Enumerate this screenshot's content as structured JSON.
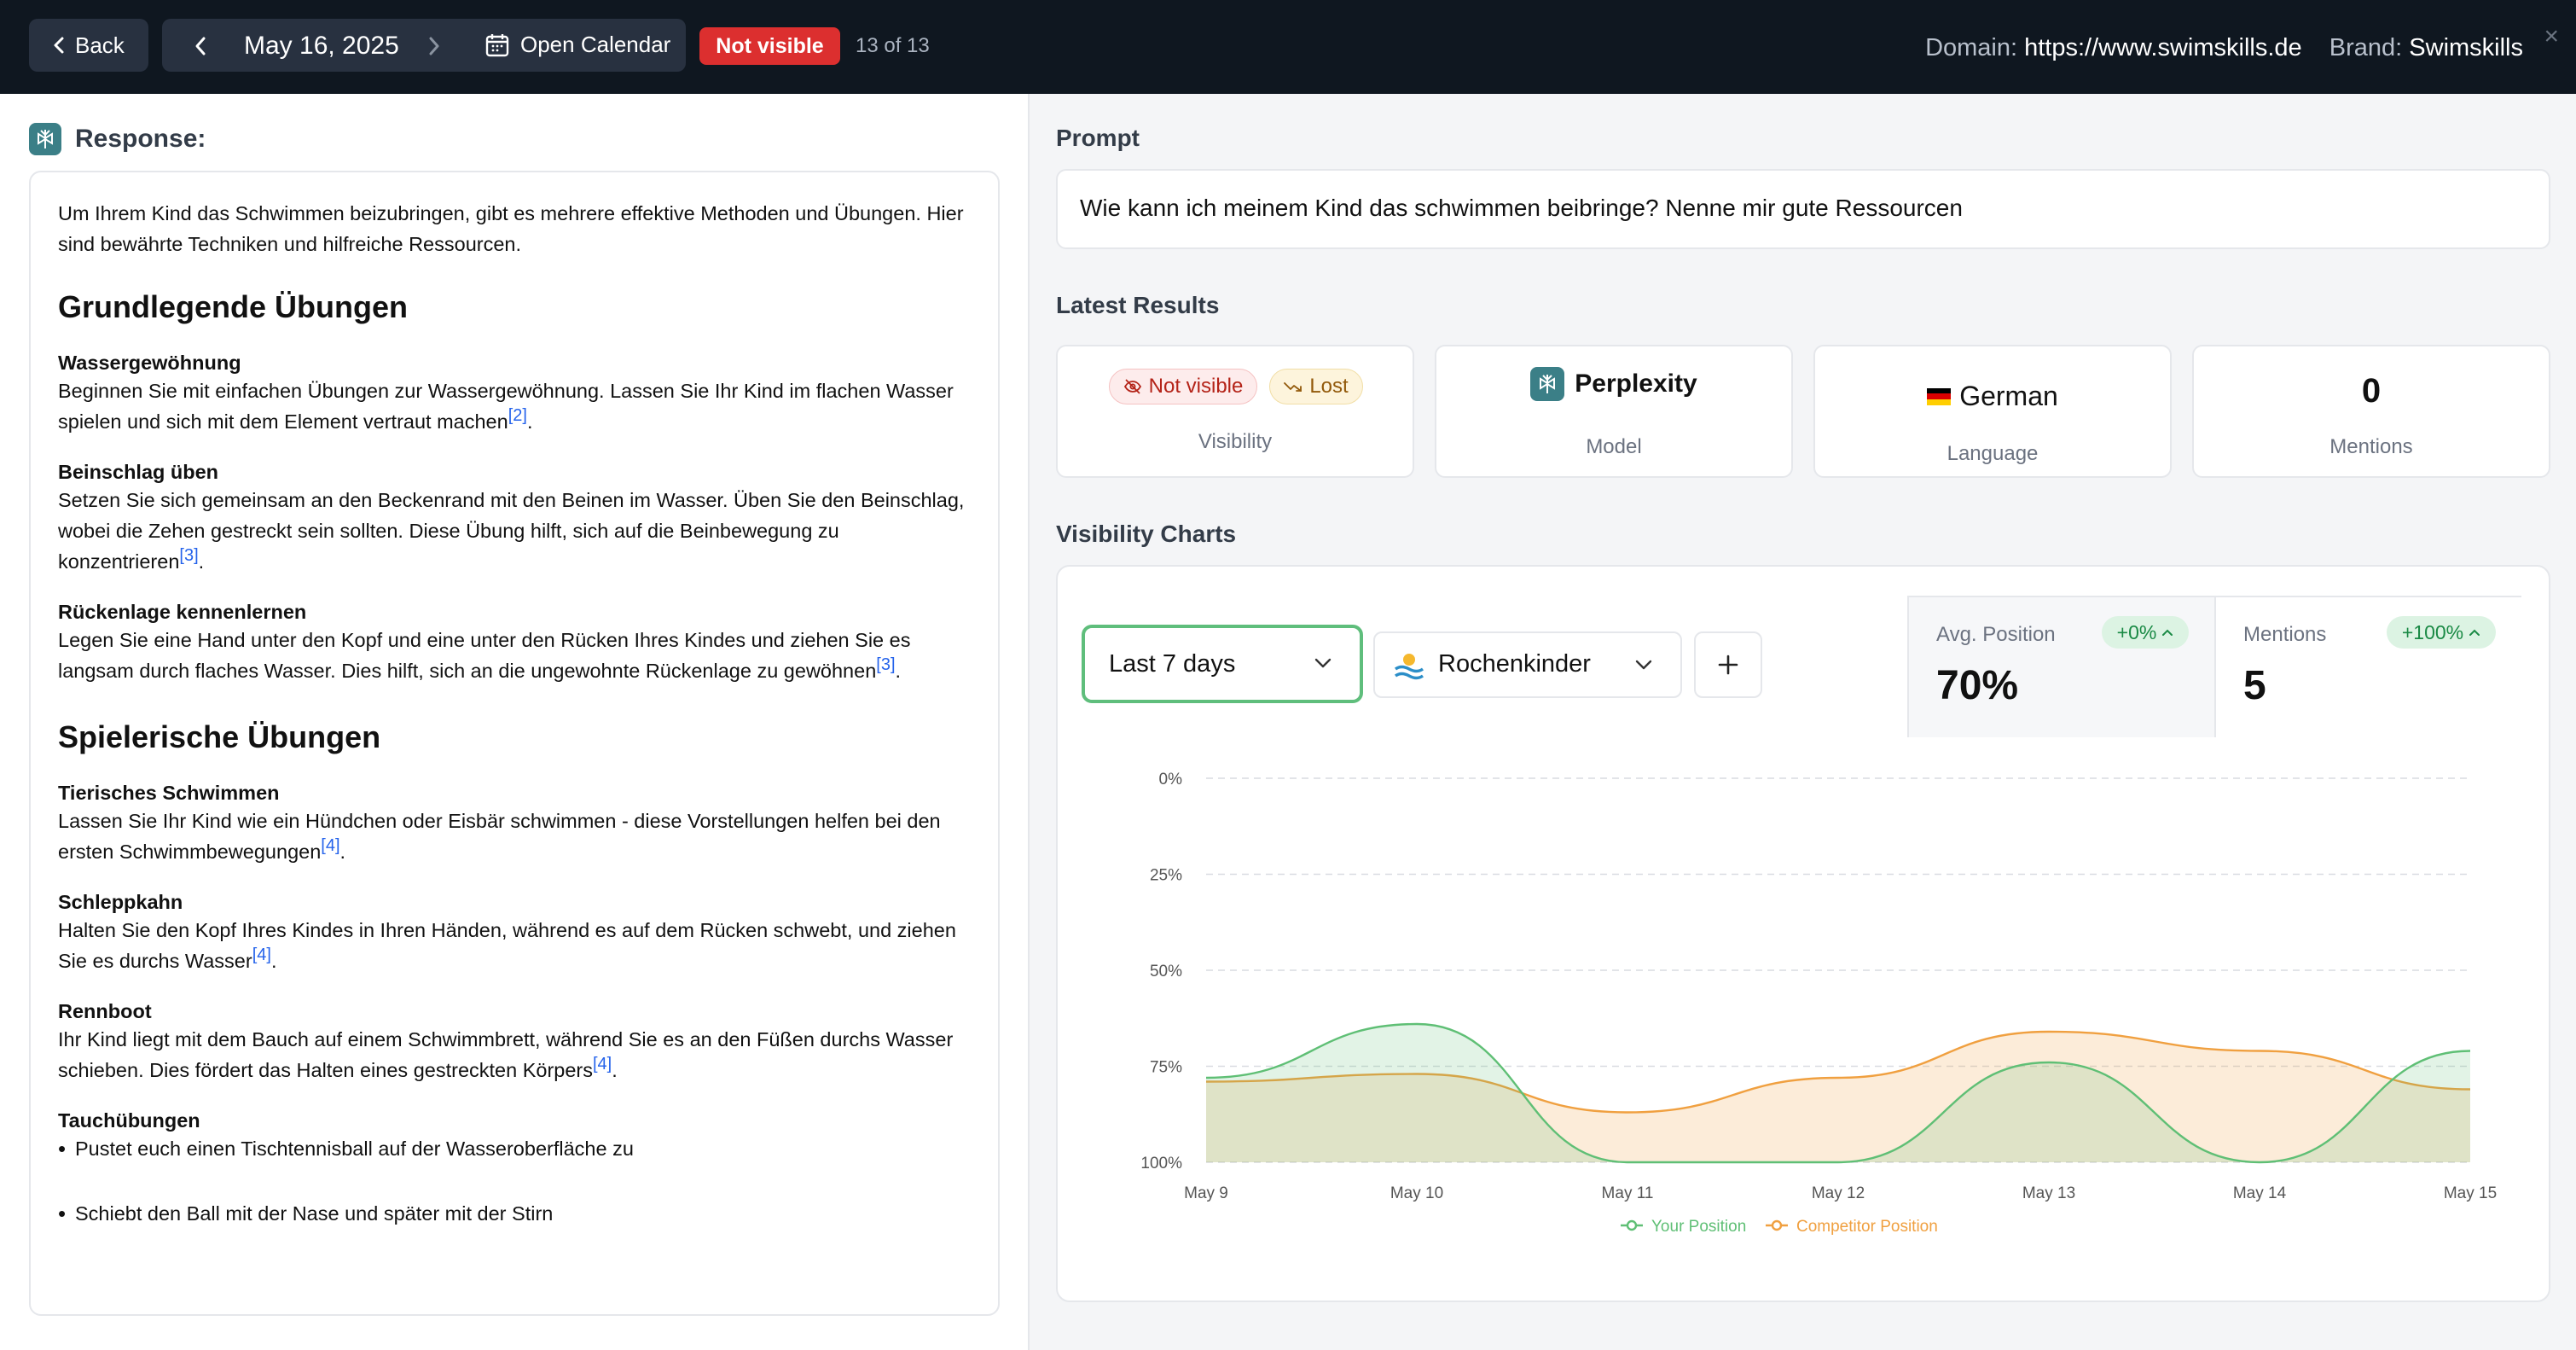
{
  "topbar": {
    "back_label": "Back",
    "date": "May 16, 2025",
    "open_calendar_label": "Open Calendar",
    "status_badge": "Not visible",
    "counter": "13 of 13",
    "domain_label": "Domain:",
    "domain_value": "https://www.swimskills.de",
    "brand_label": "Brand:",
    "brand_value": "Swimskills",
    "close_glyph": "×"
  },
  "response": {
    "title": "Response:",
    "intro": "Um Ihrem Kind das Schwimmen beizubringen, gibt es mehrere effektive Methoden und Übungen. Hier sind bewährte Techniken und hilfreiche Ressourcen.",
    "sections": [
      {
        "heading": "Grundlegende Übungen",
        "items": [
          {
            "title": "Wassergewöhnung",
            "text": "Beginnen Sie mit einfachen Übungen zur Wassergewöhnung. Lassen Sie Ihr Kind im flachen Wasser spielen und sich mit dem Element vertraut machen",
            "cite": "[2]"
          },
          {
            "title": "Beinschlag üben",
            "text": "Setzen Sie sich gemeinsam an den Beckenrand mit den Beinen im Wasser. Üben Sie den Beinschlag, wobei die Zehen gestreckt sein sollten. Diese Übung hilft, sich auf die Beinbewegung zu konzentrieren",
            "cite": "[3]"
          },
          {
            "title": "Rückenlage kennenlernen",
            "text": "Legen Sie eine Hand unter den Kopf und eine unter den Rücken Ihres Kindes und ziehen Sie es langsam durch flaches Wasser. Dies hilft, sich an die ungewohnte Rückenlage zu gewöhnen",
            "cite": "[3]"
          }
        ]
      },
      {
        "heading": "Spielerische Übungen",
        "items": [
          {
            "title": "Tierisches Schwimmen",
            "text": "Lassen Sie Ihr Kind wie ein Hündchen oder Eisbär schwimmen - diese Vorstellungen helfen bei den ersten Schwimmbewegungen",
            "cite": "[4]"
          },
          {
            "title": "Schleppkahn",
            "text": "Halten Sie den Kopf Ihres Kindes in Ihren Händen, während es auf dem Rücken schwebt, und ziehen Sie es durchs Wasser",
            "cite": "[4]"
          },
          {
            "title": "Rennboot",
            "text": "Ihr Kind liegt mit dem Bauch auf einem Schwimmbrett, während Sie es an den Füßen durchs Wasser schieben. Dies fördert das Halten eines gestreckten Körpers",
            "cite": "[4]"
          }
        ]
      }
    ],
    "dive_title": "Tauchübungen",
    "dive_bullets": [
      "Pustet euch einen Tischtennisball auf der Wasseroberfläche zu",
      "Schiebt den Ball mit der Nase und später mit der Stirn"
    ]
  },
  "prompt": {
    "title": "Prompt",
    "text": "Wie kann ich meinem Kind das schwimmen beibringe? Nenne mir gute Ressourcen"
  },
  "latest_results": {
    "title": "Latest Results",
    "visibility": {
      "badge_not_visible": "Not visible",
      "badge_lost": "Lost",
      "caption": "Visibility"
    },
    "model": {
      "name": "Perplexity",
      "caption": "Model"
    },
    "language": {
      "name": "German",
      "caption": "Language"
    },
    "mentions": {
      "value": "0",
      "caption": "Mentions"
    }
  },
  "visibility_charts": {
    "title": "Visibility Charts",
    "range_select": "Last 7 days",
    "competitor_select": "Rochenkinder",
    "add_glyph": "+",
    "avg_position": {
      "label": "Avg. Position",
      "delta": "+0%",
      "value": "70%"
    },
    "mentions": {
      "label": "Mentions",
      "delta": "+100%",
      "value": "5"
    }
  },
  "colors": {
    "your_position": "#5fbf75",
    "competitor_position": "#f0a040",
    "not_visible": "#dc2f2f",
    "topbar": "#0f1720"
  },
  "chart_data": {
    "type": "area",
    "categories": [
      "May 9",
      "May 10",
      "May 11",
      "May 12",
      "May 13",
      "May 14",
      "May 15"
    ],
    "y_ticks": [
      "0%",
      "25%",
      "50%",
      "75%",
      "100%"
    ],
    "ylim": [
      0,
      100
    ],
    "y_reversed": true,
    "grid": true,
    "legend_position": "bottom",
    "series": [
      {
        "name": "Your Position",
        "values": [
          78,
          64,
          100,
          100,
          74,
          100,
          71
        ]
      },
      {
        "name": "Competitor Position",
        "values": [
          79,
          77,
          87,
          78,
          66,
          71,
          81
        ]
      }
    ]
  }
}
